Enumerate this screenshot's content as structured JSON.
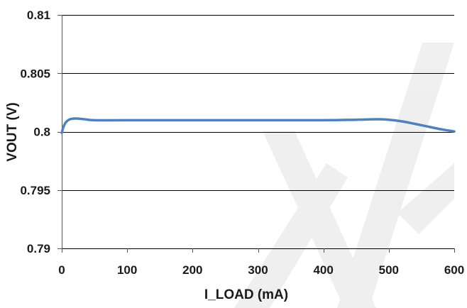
{
  "chart_data": {
    "type": "line",
    "title": "",
    "xlabel": "I_LOAD  (mA)",
    "ylabel": "VOUT (V)",
    "xlim": [
      0,
      600
    ],
    "ylim": [
      0.79,
      0.81
    ],
    "xticks": [
      0,
      100,
      200,
      300,
      400,
      500,
      600
    ],
    "yticks": [
      0.79,
      0.795,
      0.8,
      0.805,
      0.81
    ],
    "xtick_labels": [
      "0",
      "100",
      "200",
      "300",
      "400",
      "500",
      "600"
    ],
    "ytick_labels": [
      "0.79",
      "0.795",
      "0.8",
      "0.805",
      "0.81"
    ],
    "grid": "horizontal",
    "legend": "none",
    "series": [
      {
        "color": "#4f81bd",
        "x": [
          0,
          2,
          5,
          8,
          12,
          18,
          25,
          35,
          50,
          100,
          200,
          300,
          400,
          450,
          480,
          500,
          520,
          550,
          580,
          600
        ],
        "y": [
          0.7999,
          0.8003,
          0.8007,
          0.8009,
          0.80105,
          0.80112,
          0.80112,
          0.80106,
          0.80098,
          0.80098,
          0.80098,
          0.80098,
          0.80098,
          0.80102,
          0.80106,
          0.80102,
          0.80088,
          0.80055,
          0.8002,
          0.80002
        ]
      }
    ]
  }
}
